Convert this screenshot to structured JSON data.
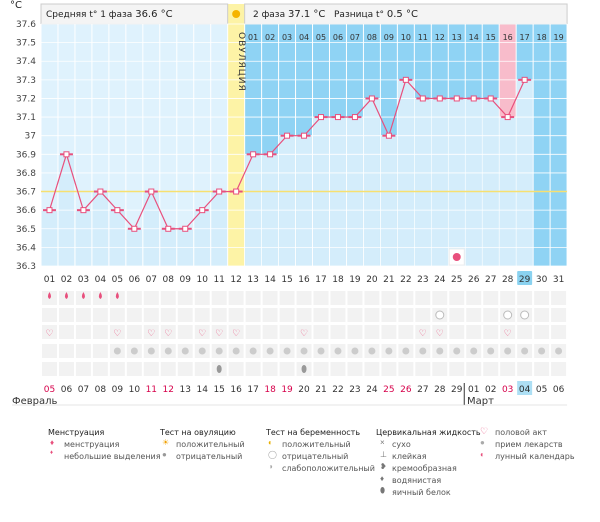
{
  "header": {
    "unit_label": "°C",
    "phase1_label": "Средняя t° 1 фаза",
    "phase1_value": "36.6 °C",
    "phase2_label": "2 фаза",
    "phase2_value": "37.1 °C",
    "diff_label": "Разница t°",
    "diff_value": "0.5 °C",
    "ovulation_label": "ОВУЛЯЦИЯ"
  },
  "months": {
    "first": "Февраль",
    "second": "Март"
  },
  "colors": {
    "phase1_bg": "#dff2fd",
    "phase2_bg": "#8fd3f4",
    "bar_fill": "#d4edfb",
    "line": "#e8507d",
    "ovulation": "#fdf3a6",
    "highlight": "#f8bccb",
    "red_date": "#d6004a",
    "today": "#8ad2f0"
  },
  "chart_data": {
    "type": "line",
    "ylim": [
      36.3,
      37.6
    ],
    "yticks": [
      "37.6",
      "37.5",
      "37.4",
      "37.3",
      "37.2",
      "37.1",
      "37",
      "36.9",
      "36.8",
      "36.7",
      "36.6",
      "36.5",
      "36.4",
      "36.3"
    ],
    "cycle_days": [
      "01",
      "02",
      "03",
      "04",
      "05",
      "06",
      "07",
      "08",
      "09",
      "10",
      "11",
      "12",
      "13",
      "14",
      "15",
      "16",
      "17",
      "18",
      "19",
      "20",
      "21",
      "22",
      "23",
      "24",
      "25",
      "26",
      "27",
      "28",
      "29",
      "30",
      "31"
    ],
    "phase2_days": [
      "01",
      "02",
      "03",
      "04",
      "05",
      "06",
      "07",
      "08",
      "09",
      "10",
      "11",
      "12",
      "13",
      "14",
      "15",
      "16",
      "17",
      "18",
      "19"
    ],
    "calendar_dates": [
      "05",
      "06",
      "07",
      "08",
      "09",
      "10",
      "11",
      "12",
      "13",
      "14",
      "15",
      "16",
      "17",
      "18",
      "19",
      "20",
      "21",
      "22",
      "23",
      "24",
      "25",
      "26",
      "27",
      "28",
      "29",
      "01",
      "02",
      "03",
      "04",
      "05",
      "06"
    ],
    "red_dates": [
      "05",
      "11",
      "12",
      "18",
      "19",
      "25",
      "26",
      "03"
    ],
    "temperatures": [
      36.6,
      36.9,
      36.6,
      36.7,
      36.6,
      36.5,
      36.7,
      36.5,
      36.5,
      36.6,
      36.7,
      36.7,
      36.9,
      36.9,
      37.0,
      37.0,
      37.1,
      37.1,
      37.1,
      37.2,
      37.0,
      37.3,
      37.2,
      37.2,
      37.2,
      37.2,
      37.2,
      37.1,
      37.3
    ],
    "ovulation_day": "12",
    "coverline": 36.7,
    "highlighted_day": "28",
    "current_day": "29",
    "series": [
      {
        "values": [
          36.6,
          36.9,
          36.6,
          36.7,
          36.6,
          36.5,
          36.7,
          36.5,
          36.5,
          36.6,
          36.7,
          36.7,
          36.9,
          36.9,
          37.0,
          37.0,
          37.1,
          37.1,
          37.1,
          37.2,
          37.0,
          37.3,
          37.2,
          37.2,
          37.2,
          37.2,
          37.2,
          37.1,
          37.3
        ]
      }
    ],
    "symbols": {
      "moon_in_chart_day": "25",
      "menstruation_days": [
        "01",
        "02",
        "03",
        "04",
        "05"
      ],
      "ovulation_test_negative_days": [
        "24",
        "28",
        "29"
      ],
      "love_days": [
        "01",
        "05",
        "07",
        "08",
        "10",
        "11",
        "12",
        "16",
        "23",
        "24",
        "28"
      ],
      "cervical_days": [
        "11",
        "16"
      ]
    }
  },
  "legend": {
    "menstruation_title": "Менструация",
    "menstruation": "менструация",
    "spotting": "небольшие выделения",
    "ovulation_test_title": "Тест на овуляцию",
    "positive": "положительный",
    "negative": "отрицательный",
    "pregnancy_test_title": "Тест на беременность",
    "preg_positive": "положительный",
    "preg_negative": "отрицательный",
    "preg_weak": "слабоположительный",
    "cervical_title": "Цервикальная жидкость",
    "dry": "сухо",
    "sticky": "клейкая",
    "creamy": "кремообразная",
    "watery": "водянистая",
    "eggwhite": "яичный белок",
    "intercourse": "половой акт",
    "medication": "прием лекарств",
    "lunar": "лунный календарь"
  }
}
